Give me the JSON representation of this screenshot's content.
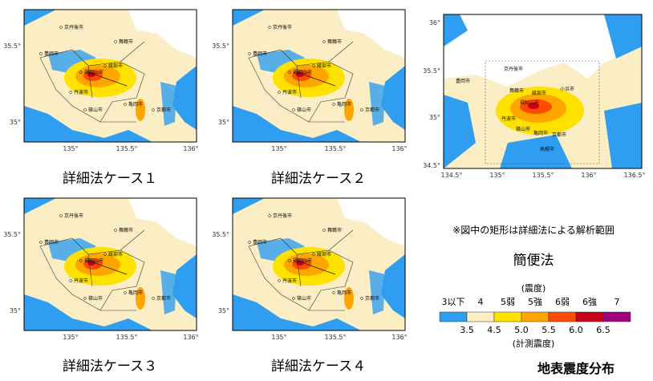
{
  "panels": [
    {
      "caption": "詳細法ケース１",
      "yticks": [
        "35.5°",
        "35°"
      ],
      "xticks": [
        "135°",
        "135.5°",
        "136°"
      ]
    },
    {
      "caption": "詳細法ケース２",
      "yticks": [
        "35.5°",
        "35°"
      ],
      "xticks": [
        "135°",
        "135.5°",
        "136°"
      ]
    },
    {
      "caption": "詳細法ケース３",
      "yticks": [
        "35.5°",
        "35°"
      ],
      "xticks": [
        "135°",
        "135.5°",
        "136°"
      ]
    },
    {
      "caption": "詳細法ケース４",
      "yticks": [
        "35.5°",
        "35°"
      ],
      "xticks": [
        "135°",
        "135.5°",
        "136°"
      ]
    }
  ],
  "cities": [
    "京丹後市",
    "豊岡市",
    "舞鶴市",
    "福知山市",
    "丹波市",
    "綾部市",
    "篠山市",
    "亀岡市",
    "京都市"
  ],
  "overview": {
    "yticks": [
      "36°",
      "35.5°",
      "35°",
      "34.5°"
    ],
    "xticks": [
      "134.5°",
      "135°",
      "135.5°",
      "136°",
      "136.5°"
    ],
    "extra_cities": [
      "小浜市",
      "高槻市"
    ],
    "note": "※図中の矩形は詳細法による解析範囲",
    "caption": "簡便法"
  },
  "legend": {
    "class_title": "(震度)",
    "classes": [
      {
        "label": "3以下",
        "color": "#2f9ef0"
      },
      {
        "label": "4",
        "color": "#fbeec4"
      },
      {
        "label": "5弱",
        "color": "#ffe100"
      },
      {
        "label": "5強",
        "color": "#ffa500"
      },
      {
        "label": "6弱",
        "color": "#ff4a00"
      },
      {
        "label": "6強",
        "color": "#c8001e"
      },
      {
        "label": "7",
        "color": "#a3007d"
      }
    ],
    "ticks": [
      "3.5",
      "4.5",
      "5.0",
      "5.5",
      "6.0",
      "6.5"
    ],
    "tick_title": "(計測震度)"
  },
  "title": "地表震度分布"
}
